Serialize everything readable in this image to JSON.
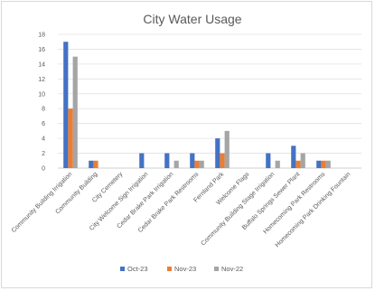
{
  "chart_data": {
    "type": "bar",
    "title": "City Water Usage",
    "xlabel": "",
    "ylabel": "",
    "ylim": [
      0,
      18
    ],
    "yticks": [
      0,
      2,
      4,
      6,
      8,
      10,
      12,
      14,
      16,
      18
    ],
    "grid": true,
    "legend_position": "bottom",
    "categories": [
      "Community Building Irrigation",
      "Community Building",
      "City Cemetery",
      "City Welcome Sign Irrigation",
      "Cedar Brake Park Irrigation",
      "Cedar Brake Park Restrooms",
      "Fernland Park",
      "Welcome Flags",
      "Community Building Stage Irrigation",
      "Buffalo Springs Sewer Plant",
      "Homecoming Park Restrooms",
      "Homecoming Park Drinking Fountain"
    ],
    "series": [
      {
        "name": "Oct-23",
        "color": "#4472c4",
        "values": [
          17,
          1,
          0,
          2,
          2,
          2,
          4,
          0,
          2,
          3,
          1,
          0
        ]
      },
      {
        "name": "Nov-23",
        "color": "#ed7d31",
        "values": [
          8,
          1,
          0,
          0,
          0,
          1,
          2,
          0,
          0,
          1,
          1,
          0
        ]
      },
      {
        "name": "Nov-22",
        "color": "#a5a5a5",
        "values": [
          15,
          0,
          0,
          0,
          1,
          1,
          5,
          0,
          1,
          2,
          1,
          0
        ]
      }
    ]
  }
}
